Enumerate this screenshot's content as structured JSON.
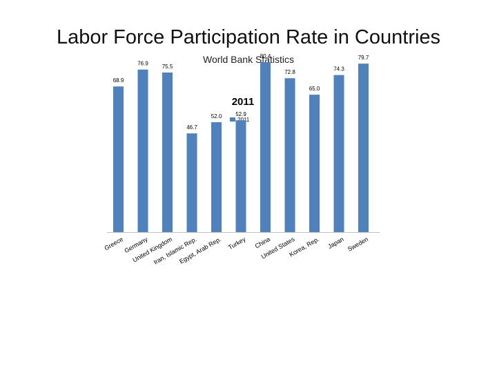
{
  "slide": {
    "title": "Labor Force Participation Rate in Countries",
    "subtitle": "World Bank Statistics"
  },
  "chart_data": {
    "type": "bar",
    "title": "2011",
    "categories": [
      "Greece",
      "Germany",
      "United Kingdom",
      "Iran, Islamic Rep.",
      "Egypt, Arab Rep.",
      "Turkey",
      "China",
      "United States",
      "Korea, Rep.",
      "Japan",
      "Sweden"
    ],
    "series": [
      {
        "name": "2011",
        "values": [
          68.9,
          76.9,
          75.5,
          46.7,
          52.0,
          52.9,
          80.4,
          72.8,
          65.0,
          74.3,
          79.7
        ],
        "labels": [
          "68.9",
          "76.9",
          "75.5",
          "46.7",
          "52.0",
          "52.9",
          "80.4",
          "72.8",
          "65.0",
          "74.3",
          "79.7"
        ]
      }
    ],
    "legend": "top-center",
    "grid": false,
    "color": "#4f81bd"
  }
}
